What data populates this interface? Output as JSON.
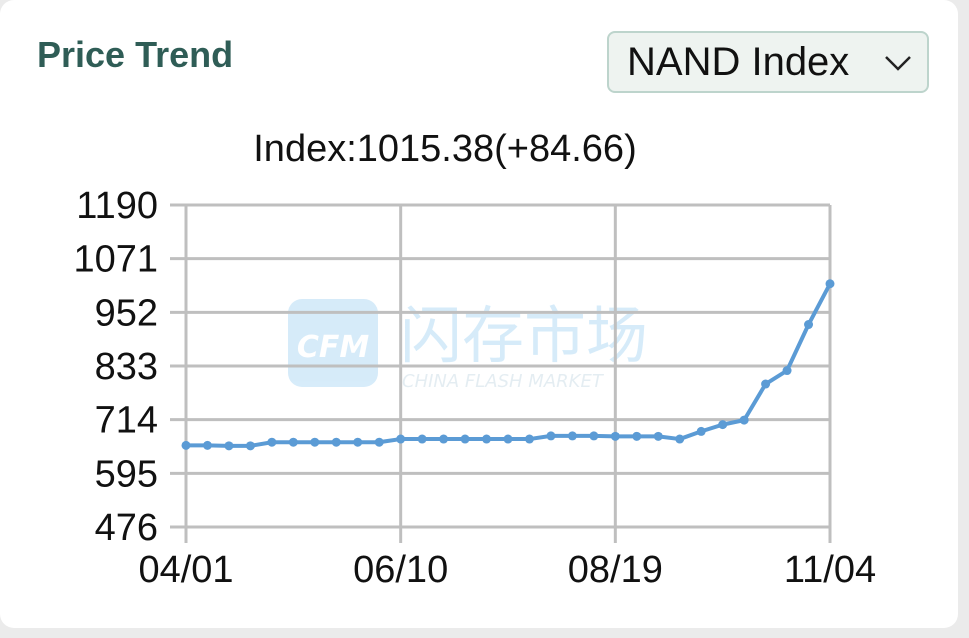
{
  "header": {
    "title": "Price Trend",
    "selector_value": "NAND Index",
    "selector_icon": "chevron-down-icon"
  },
  "index_summary": "Index:1015.38(+84.66)",
  "watermark": {
    "logo_text": "CFM",
    "chinese_text": "闪存市场",
    "english_text": "CHINA FLASH MARKET"
  },
  "colors": {
    "title": "#2f5d56",
    "line": "#5b9bd5",
    "grid": "#bfbfbf",
    "dropdown_border": "#bdd4cc",
    "dropdown_bg": "#eef3f0"
  },
  "chart_data": {
    "type": "line",
    "title": "",
    "xlabel": "",
    "ylabel": "",
    "x_tick_labels": [
      "04/01",
      "06/10",
      "08/19",
      "11/04"
    ],
    "y_tick_labels": [
      "1190",
      "1071",
      "952",
      "833",
      "714",
      "595",
      "476"
    ],
    "ylim": [
      476,
      1190
    ],
    "grid": true,
    "series": [
      {
        "values": [
          657,
          657,
          656,
          656,
          664,
          664,
          664,
          664,
          664,
          664,
          671,
          671,
          671,
          671,
          671,
          671,
          671,
          678,
          678,
          678,
          677,
          677,
          677,
          671,
          688,
          703,
          713,
          793,
          823,
          925,
          1015.38
        ]
      }
    ]
  }
}
